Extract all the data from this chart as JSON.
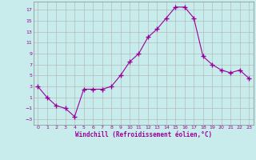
{
  "x": [
    0,
    1,
    2,
    3,
    4,
    5,
    6,
    7,
    8,
    9,
    10,
    11,
    12,
    13,
    14,
    15,
    16,
    17,
    18,
    19,
    20,
    21,
    22,
    23
  ],
  "y": [
    3,
    1,
    -0.5,
    -1,
    -2.5,
    2.5,
    2.5,
    2.5,
    3,
    5,
    7.5,
    9,
    12,
    13.5,
    15.5,
    17.5,
    17.5,
    15.5,
    8.5,
    7,
    6,
    5.5,
    6,
    4.5
  ],
  "line_color": "#990099",
  "marker": "+",
  "marker_size": 4,
  "bg_color": "#c8ecec",
  "grid_color": "#b0b0b0",
  "xlabel": "Windchill (Refroidissement éolien,°C)",
  "xlabel_color": "#990099",
  "tick_color": "#990099",
  "ylim": [
    -4,
    18.5
  ],
  "xlim": [
    -0.5,
    23.5
  ],
  "yticks": [
    -3,
    -1,
    1,
    3,
    5,
    7,
    9,
    11,
    13,
    15,
    17
  ],
  "xticks": [
    0,
    1,
    2,
    3,
    4,
    5,
    6,
    7,
    8,
    9,
    10,
    11,
    12,
    13,
    14,
    15,
    16,
    17,
    18,
    19,
    20,
    21,
    22,
    23
  ],
  "figsize": [
    3.2,
    2.0
  ],
  "dpi": 100
}
